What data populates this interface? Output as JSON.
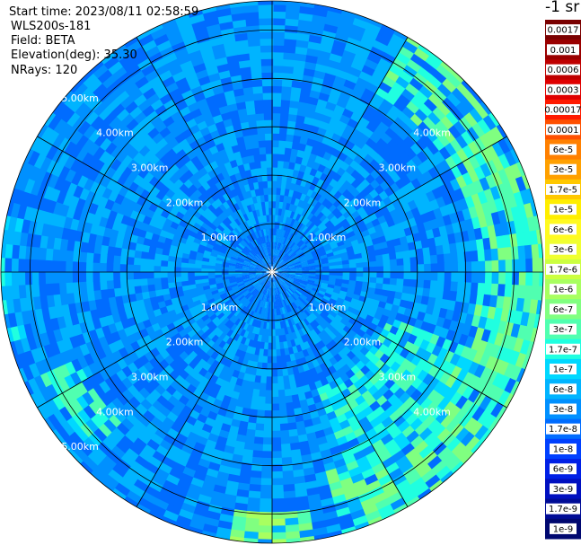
{
  "header": {
    "start_time": "Start time: 2023/08/11 02:58:59",
    "instrument": "WLS200s-181",
    "field": "Field: BETA",
    "elevation": "Elevation(deg): 35.30",
    "nrays": "NRays: 120"
  },
  "colorbar": {
    "units": "-1 sr",
    "ticks": [
      "0.0017",
      "0.001",
      "0.0006",
      "0.0003",
      "0.00017",
      "0.0001",
      "6e-5",
      "3e-5",
      "1.7e-5",
      "1e-5",
      "6e-6",
      "3e-6",
      "1.7e-6",
      "1e-6",
      "6e-7",
      "3e-7",
      "1.7e-7",
      "1e-7",
      "6e-8",
      "3e-8",
      "1.7e-8",
      "1e-8",
      "6e-9",
      "3e-9",
      "1.7e-9",
      "1e-9"
    ],
    "colors": [
      "#7a0000",
      "#9a0000",
      "#bf0000",
      "#e00000",
      "#ff1a00",
      "#ff5000",
      "#ff8000",
      "#ffa000",
      "#ffc800",
      "#ffee00",
      "#fffa20",
      "#f0ff30",
      "#ccff40",
      "#a8ff60",
      "#80ff80",
      "#50ffb0",
      "#20ffe0",
      "#00d8ff",
      "#00b4ff",
      "#0090ff",
      "#006cff",
      "#0040ff",
      "#0020e6",
      "#0010c0",
      "#000c96",
      "#000870"
    ]
  },
  "chart_data": {
    "type": "heatmap",
    "projection": "polar PPI",
    "field": "BETA",
    "elevation_deg": 35.3,
    "n_rays": 120,
    "range_rings_km": [
      1,
      2,
      3,
      4,
      5
    ],
    "range_labels": [
      "1.00km",
      "2.00km",
      "3.00km",
      "4.00km",
      "5.00km"
    ],
    "max_range_km": 5.6,
    "spokes_deg": [
      0,
      30,
      60,
      90,
      120,
      150,
      180,
      210,
      240,
      270,
      300,
      330
    ],
    "background_value": "3e-8",
    "enhanced_regions": [
      {
        "description": "outer ring band east to south-east",
        "azimuth_deg": [
          30,
          165
        ],
        "range_km": [
          4.2,
          5.6
        ],
        "value": "3e-7"
      },
      {
        "description": "plume south-east",
        "azimuth_deg": [
          110,
          160
        ],
        "range_km": [
          2.6,
          4.6
        ],
        "value": "1.7e-7"
      },
      {
        "description": "southern edge patch",
        "azimuth_deg": [
          170,
          190
        ],
        "range_km": [
          4.9,
          5.6
        ],
        "value": "6e-7"
      },
      {
        "description": "south-west edge patch",
        "azimuth_deg": [
          225,
          245
        ],
        "range_km": [
          4.4,
          5.2
        ],
        "value": "1.7e-7"
      },
      {
        "description": "west edge",
        "azimuth_deg": [
          255,
          285
        ],
        "range_km": [
          5.2,
          5.6
        ],
        "value": "1e-7"
      }
    ]
  }
}
